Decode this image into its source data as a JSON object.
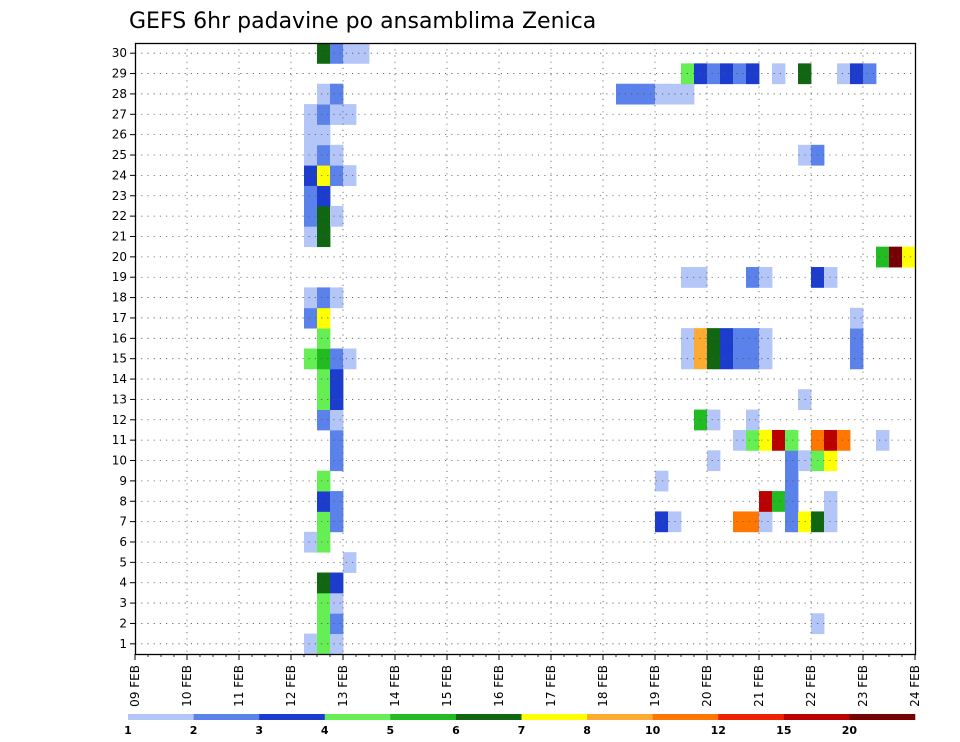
{
  "chart_data": {
    "type": "heatmap",
    "title": "GEFS 6hr padavine po ansamblima Zenica",
    "y_values": [
      1,
      2,
      3,
      4,
      5,
      6,
      7,
      8,
      9,
      10,
      11,
      12,
      13,
      14,
      15,
      16,
      17,
      18,
      19,
      20,
      21,
      22,
      23,
      24,
      25,
      26,
      27,
      28,
      29,
      30
    ],
    "x_tick_labels": [
      "09 FEB",
      "10 FEB",
      "11 FEB",
      "12 FEB",
      "13 FEB",
      "14 FEB",
      "15 FEB",
      "16 FEB",
      "17 FEB",
      "18 FEB",
      "19 FEB",
      "20 FEB",
      "21 FEB",
      "22 FEB",
      "23 FEB",
      "24 FEB"
    ],
    "x_range_days": [
      0,
      15
    ],
    "y_range": [
      0.5,
      30.5
    ],
    "grid": true,
    "colorbar": {
      "position": "bottom",
      "labels": [
        "1",
        "2",
        "3",
        "4",
        "5",
        "6",
        "7",
        "8",
        "10",
        "12",
        "15",
        "20"
      ],
      "colors": [
        "#b4c5f8",
        "#5b82eb",
        "#1b3ccd",
        "#66ee55",
        "#22bb22",
        "#116611",
        "#ffff00",
        "#ffaa33",
        "#ff7700",
        "#ee2200",
        "#bb0000",
        "#770000"
      ]
    },
    "cells": [
      [
        3.25,
        1,
        1
      ],
      [
        3.5,
        1,
        4
      ],
      [
        3.75,
        1,
        1
      ],
      [
        3.5,
        2,
        4
      ],
      [
        3.75,
        2,
        2
      ],
      [
        3.5,
        3,
        4
      ],
      [
        3.75,
        3,
        1
      ],
      [
        3.5,
        4,
        6
      ],
      [
        3.75,
        4,
        3
      ],
      [
        4.0,
        5,
        1
      ],
      [
        3.25,
        6,
        1
      ],
      [
        3.5,
        6,
        4
      ],
      [
        3.5,
        7,
        4
      ],
      [
        3.75,
        7,
        2
      ],
      [
        3.5,
        8,
        3
      ],
      [
        3.75,
        8,
        2
      ],
      [
        3.5,
        9,
        4
      ],
      [
        3.75,
        10,
        2
      ],
      [
        3.75,
        11,
        2
      ],
      [
        3.5,
        12,
        2
      ],
      [
        3.75,
        12,
        1
      ],
      [
        3.5,
        13,
        4
      ],
      [
        3.75,
        13,
        3
      ],
      [
        3.5,
        14,
        4
      ],
      [
        3.75,
        14,
        3
      ],
      [
        3.25,
        15,
        4
      ],
      [
        3.5,
        15,
        5
      ],
      [
        3.75,
        15,
        2
      ],
      [
        4.0,
        15,
        1
      ],
      [
        3.5,
        16,
        4
      ],
      [
        3.25,
        17,
        2
      ],
      [
        3.5,
        17,
        7
      ],
      [
        3.25,
        18,
        1
      ],
      [
        3.5,
        18,
        2
      ],
      [
        3.75,
        18,
        1
      ],
      [
        3.25,
        21,
        1
      ],
      [
        3.5,
        21,
        6
      ],
      [
        3.25,
        22,
        2
      ],
      [
        3.5,
        22,
        6
      ],
      [
        3.75,
        22,
        1
      ],
      [
        3.25,
        23,
        2
      ],
      [
        3.5,
        23,
        3
      ],
      [
        3.25,
        24,
        3
      ],
      [
        3.5,
        24,
        7
      ],
      [
        3.75,
        24,
        2
      ],
      [
        4.0,
        24,
        1
      ],
      [
        3.25,
        25,
        1
      ],
      [
        3.5,
        25,
        2
      ],
      [
        3.75,
        25,
        1
      ],
      [
        3.25,
        26,
        1
      ],
      [
        3.5,
        26,
        1
      ],
      [
        3.25,
        27,
        1
      ],
      [
        3.5,
        27,
        2
      ],
      [
        3.75,
        27,
        1
      ],
      [
        4.0,
        27,
        1
      ],
      [
        3.5,
        28,
        1
      ],
      [
        3.75,
        28,
        2
      ],
      [
        3.5,
        30,
        6
      ],
      [
        3.75,
        30,
        2
      ],
      [
        4.0,
        30,
        1
      ],
      [
        4.25,
        30,
        1
      ],
      [
        13.0,
        2,
        1
      ],
      [
        10.0,
        7,
        3
      ],
      [
        10.25,
        7,
        1
      ],
      [
        11.5,
        7,
        9
      ],
      [
        11.75,
        7,
        9
      ],
      [
        12.0,
        7,
        1
      ],
      [
        12.5,
        7,
        2
      ],
      [
        12.75,
        7,
        7
      ],
      [
        13.0,
        7,
        6
      ],
      [
        13.25,
        7,
        1
      ],
      [
        12.0,
        8,
        11
      ],
      [
        12.25,
        8,
        5
      ],
      [
        12.5,
        8,
        2
      ],
      [
        13.25,
        8,
        1
      ],
      [
        10.0,
        9,
        1
      ],
      [
        12.5,
        9,
        2
      ],
      [
        11.0,
        10,
        1
      ],
      [
        12.5,
        10,
        2
      ],
      [
        12.75,
        10,
        1
      ],
      [
        13.0,
        10,
        4
      ],
      [
        13.25,
        10,
        7
      ],
      [
        11.5,
        11,
        1
      ],
      [
        11.75,
        11,
        4
      ],
      [
        12.0,
        11,
        7
      ],
      [
        12.25,
        11,
        11
      ],
      [
        12.5,
        11,
        4
      ],
      [
        13.0,
        11,
        9
      ],
      [
        13.25,
        11,
        11
      ],
      [
        13.5,
        11,
        9
      ],
      [
        14.25,
        11,
        1
      ],
      [
        10.75,
        12,
        5
      ],
      [
        11.0,
        12,
        1
      ],
      [
        11.75,
        12,
        1
      ],
      [
        12.75,
        13,
        1
      ],
      [
        10.5,
        15,
        1
      ],
      [
        10.75,
        15,
        8
      ],
      [
        11.0,
        15,
        6
      ],
      [
        11.25,
        15,
        3
      ],
      [
        11.5,
        15,
        2
      ],
      [
        11.75,
        15,
        2
      ],
      [
        12.0,
        15,
        1
      ],
      [
        13.75,
        15,
        2
      ],
      [
        10.5,
        16,
        1
      ],
      [
        10.75,
        16,
        8
      ],
      [
        11.0,
        16,
        6
      ],
      [
        11.25,
        16,
        3
      ],
      [
        11.5,
        16,
        2
      ],
      [
        11.75,
        16,
        2
      ],
      [
        12.0,
        16,
        1
      ],
      [
        13.75,
        16,
        2
      ],
      [
        13.75,
        17,
        1
      ],
      [
        10.5,
        19,
        1
      ],
      [
        10.75,
        19,
        1
      ],
      [
        11.75,
        19,
        2
      ],
      [
        12.0,
        19,
        1
      ],
      [
        13.0,
        19,
        3
      ],
      [
        13.25,
        19,
        1
      ],
      [
        14.25,
        20,
        5
      ],
      [
        14.5,
        20,
        12
      ],
      [
        14.75,
        20,
        7
      ],
      [
        12.75,
        25,
        1
      ],
      [
        13.0,
        25,
        2
      ],
      [
        9.25,
        28,
        2
      ],
      [
        9.5,
        28,
        2
      ],
      [
        9.75,
        28,
        2
      ],
      [
        10.0,
        28,
        1
      ],
      [
        10.25,
        28,
        1
      ],
      [
        10.5,
        28,
        1
      ],
      [
        10.5,
        29,
        4
      ],
      [
        10.75,
        29,
        3
      ],
      [
        11.0,
        29,
        2
      ],
      [
        11.25,
        29,
        3
      ],
      [
        11.5,
        29,
        2
      ],
      [
        11.75,
        29,
        3
      ],
      [
        12.25,
        29,
        1
      ],
      [
        12.75,
        29,
        6
      ],
      [
        13.5,
        29,
        1
      ],
      [
        13.75,
        29,
        3
      ],
      [
        14.0,
        29,
        2
      ]
    ]
  }
}
